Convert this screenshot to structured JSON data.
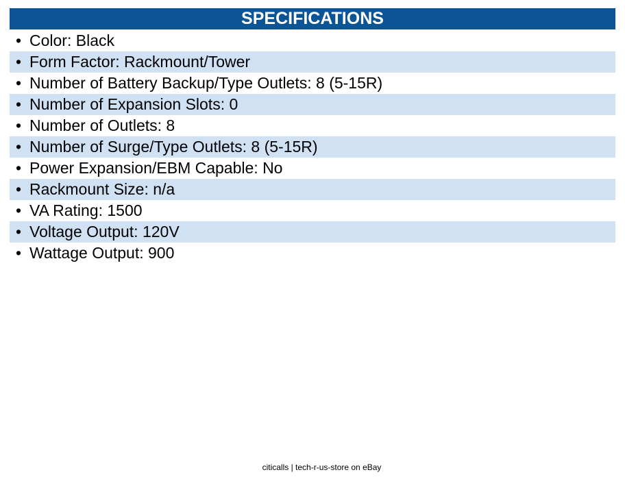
{
  "header": {
    "title": "SPECIFICATIONS"
  },
  "specs": {
    "bullet": "•",
    "items": [
      "Color: Black",
      "Form Factor: Rackmount/Tower",
      "Number of Battery Backup/Type Outlets: 8 (5-15R)",
      "Number of Expansion Slots: 0",
      "Number of Outlets: 8",
      "Number of Surge/Type Outlets: 8 (5-15R)",
      "Power Expansion/EBM Capable: No",
      "Rackmount Size: n/a",
      "VA Rating: 1500",
      "Voltage Output: 120V",
      "Wattage Output: 900"
    ]
  },
  "footer": {
    "text": "citicalls | tech-r-us-store on eBay"
  },
  "colors": {
    "header_bg": "#0b5496",
    "row_shade": "#cfe1f3"
  }
}
